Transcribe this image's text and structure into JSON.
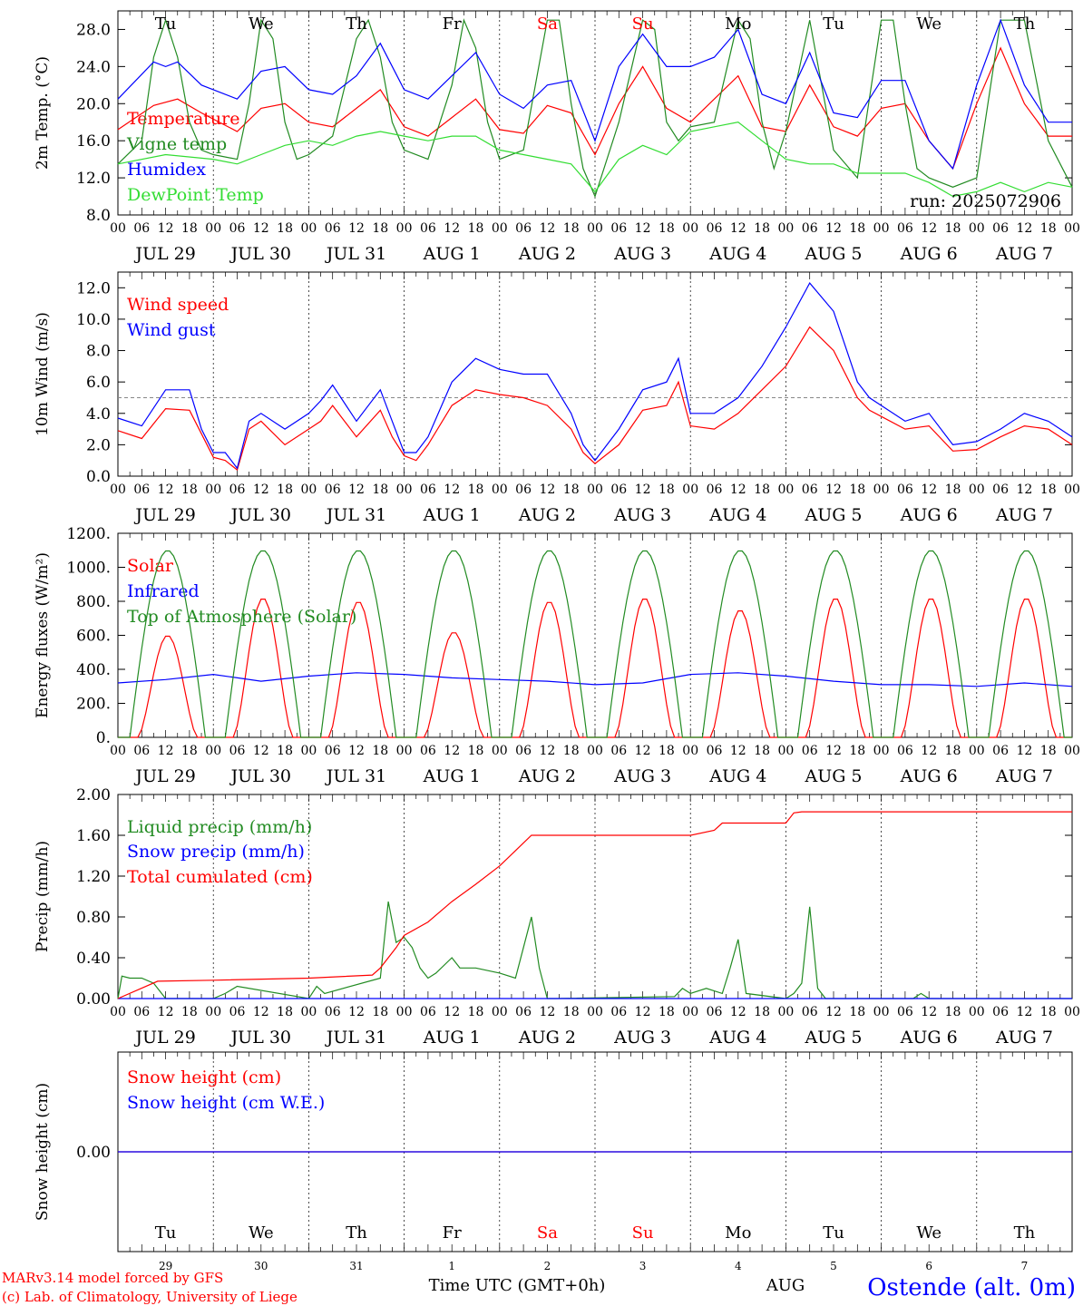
{
  "meta": {
    "run_label": "run: 2025072906",
    "footer_credit_1": "MARv3.14 model forced by GFS",
    "footer_credit_2": "(c) Lab. of Climatology, University of Liege",
    "time_axis_label": "Time UTC (GMT+0h)",
    "month_label": "AUG",
    "station": "Ostende (alt. 0m)"
  },
  "days": [
    {
      "date": "JUL 29",
      "dow": "Tu",
      "num": "29",
      "weekend": false
    },
    {
      "date": "JUL 30",
      "dow": "We",
      "num": "30",
      "weekend": false
    },
    {
      "date": "JUL 31",
      "dow": "Th",
      "num": "31",
      "weekend": false
    },
    {
      "date": "AUG  1",
      "dow": "Fr",
      "num": "1",
      "weekend": false
    },
    {
      "date": "AUG  2",
      "dow": "Sa",
      "num": "2",
      "weekend": true
    },
    {
      "date": "AUG  3",
      "dow": "Su",
      "num": "3",
      "weekend": true
    },
    {
      "date": "AUG  4",
      "dow": "Mo",
      "num": "4",
      "weekend": false
    },
    {
      "date": "AUG  5",
      "dow": "Tu",
      "num": "5",
      "weekend": false
    },
    {
      "date": "AUG  6",
      "dow": "We",
      "num": "6",
      "weekend": false
    },
    {
      "date": "AUG  7",
      "dow": "Th",
      "num": "7",
      "weekend": false
    }
  ],
  "hour_ticks": [
    "00",
    "06",
    "12",
    "18"
  ],
  "final_tick": "00",
  "colors": {
    "red": "#ff0000",
    "green": "#228b22",
    "blue": "#0000ff",
    "lightgreen": "#33dd33",
    "weekend": "#ff0000",
    "station": "#0000ff"
  },
  "chart_data": [
    {
      "type": "line",
      "ylabel": "2m Temp. (°C)",
      "ylim": [
        8,
        30
      ],
      "ytick_values": [
        8,
        12,
        16,
        20,
        24,
        28
      ],
      "ytick_labels": [
        "8.0",
        "12.0",
        "16.0",
        "20.0",
        "24.0",
        "28.0"
      ],
      "series": [
        {
          "name": "Temperature",
          "color": "#ff0000",
          "x": [
            0,
            9,
            15,
            21,
            30,
            36,
            42,
            48,
            54,
            60,
            66,
            72,
            78,
            84,
            90,
            96,
            102,
            108,
            114,
            120,
            126,
            132,
            138,
            144,
            150,
            156,
            162,
            168,
            174,
            180,
            186,
            192,
            198,
            204,
            210,
            216,
            222,
            228,
            234,
            240
          ],
          "y": [
            17.2,
            19.8,
            20.5,
            19.0,
            17.0,
            19.5,
            20.0,
            18.0,
            17.5,
            19.5,
            21.5,
            17.5,
            16.5,
            18.5,
            20.5,
            17.2,
            16.8,
            19.8,
            19.0,
            14.5,
            20.0,
            24.0,
            19.5,
            18.0,
            20.5,
            23.0,
            17.5,
            17.0,
            22.0,
            17.5,
            16.5,
            19.5,
            20.0,
            16.0,
            13.0,
            20.0,
            26.0,
            20.0,
            16.5,
            16.5
          ]
        },
        {
          "name": "Vigne temp",
          "color": "#228b22",
          "x": [
            0,
            6,
            9,
            12,
            15,
            18,
            21,
            24,
            30,
            33,
            36,
            39,
            42,
            45,
            48,
            54,
            60,
            63,
            66,
            69,
            72,
            78,
            84,
            87,
            90,
            93,
            96,
            102,
            108,
            111,
            114,
            117,
            120,
            126,
            132,
            135,
            138,
            141,
            144,
            150,
            156,
            159,
            162,
            165,
            168,
            174,
            180,
            186,
            192,
            195,
            198,
            201,
            204,
            210,
            216,
            222,
            228,
            234,
            240
          ],
          "y": [
            13.5,
            16.0,
            25.0,
            29.0,
            25.0,
            18.0,
            15.0,
            14.5,
            14.0,
            20.0,
            29.0,
            27.0,
            18.0,
            14.0,
            14.5,
            16.5,
            27.0,
            29.0,
            25.0,
            18.0,
            15.0,
            14.0,
            22.0,
            29.0,
            26.0,
            18.0,
            14.0,
            15.0,
            29.0,
            29.0,
            20.0,
            13.0,
            10.0,
            18.0,
            29.0,
            28.0,
            18.0,
            16.0,
            17.5,
            18.0,
            29.0,
            27.0,
            18.0,
            13.0,
            17.0,
            29.0,
            15.0,
            12.0,
            29.0,
            29.0,
            20.0,
            13.0,
            12.0,
            11.0,
            12.0,
            29.0,
            29.0,
            16.0,
            11.0
          ]
        },
        {
          "name": "Humidex",
          "color": "#0000ff",
          "x": [
            0,
            9,
            12,
            15,
            21,
            30,
            36,
            42,
            48,
            54,
            60,
            66,
            72,
            78,
            84,
            90,
            96,
            102,
            108,
            114,
            120,
            126,
            132,
            138,
            144,
            150,
            156,
            162,
            168,
            174,
            180,
            186,
            192,
            198,
            204,
            210,
            216,
            222,
            228,
            234,
            240
          ],
          "y": [
            20.5,
            24.5,
            24.0,
            24.5,
            22.0,
            20.5,
            23.5,
            24.0,
            21.5,
            21.0,
            23.0,
            26.5,
            21.5,
            20.5,
            23.0,
            25.5,
            21.0,
            19.5,
            22.0,
            22.5,
            16.0,
            24.0,
            27.5,
            24.0,
            24.0,
            25.0,
            28.0,
            21.0,
            20.0,
            25.5,
            19.0,
            18.5,
            22.5,
            22.5,
            16.0,
            13.0,
            22.0,
            29.0,
            22.0,
            18.0,
            18.0
          ]
        },
        {
          "name": "DewPoint Temp",
          "color": "#33dd33",
          "x": [
            0,
            12,
            24,
            30,
            36,
            42,
            48,
            54,
            60,
            66,
            72,
            78,
            84,
            90,
            96,
            102,
            108,
            114,
            120,
            126,
            132,
            138,
            144,
            150,
            156,
            162,
            168,
            174,
            180,
            186,
            192,
            198,
            204,
            210,
            216,
            222,
            228,
            234,
            240
          ],
          "y": [
            13.5,
            14.5,
            14.0,
            13.5,
            14.5,
            15.5,
            16.0,
            15.5,
            16.5,
            17.0,
            16.5,
            16.0,
            16.5,
            16.5,
            15.0,
            14.5,
            14.0,
            13.5,
            10.5,
            14.0,
            15.5,
            14.5,
            17.0,
            17.5,
            18.0,
            16.0,
            14.0,
            13.5,
            13.5,
            12.5,
            12.5,
            12.5,
            11.5,
            10.0,
            10.5,
            11.5,
            10.5,
            11.5,
            11.0
          ]
        }
      ]
    },
    {
      "type": "line",
      "ylabel": "10m Wind (m/s)",
      "ylim": [
        0,
        13
      ],
      "ytick_values": [
        0,
        2,
        4,
        6,
        8,
        10,
        12
      ],
      "ytick_labels": [
        "0.0",
        "2.0",
        "4.0",
        "6.0",
        "8.0",
        "10.0",
        "12.0"
      ],
      "ref_line": 5,
      "series": [
        {
          "name": "Wind speed",
          "color": "#ff0000",
          "x": [
            0,
            6,
            12,
            18,
            21,
            24,
            27,
            30,
            33,
            36,
            42,
            48,
            51,
            54,
            60,
            66,
            69,
            72,
            75,
            78,
            84,
            90,
            96,
            102,
            108,
            114,
            117,
            120,
            126,
            132,
            138,
            141,
            144,
            150,
            156,
            162,
            168,
            174,
            180,
            186,
            189,
            192,
            198,
            204,
            210,
            216,
            222,
            228,
            234,
            240
          ],
          "y": [
            2.9,
            2.4,
            4.3,
            4.2,
            2.7,
            1.2,
            1.0,
            0.4,
            3.0,
            3.5,
            2.0,
            3.0,
            3.5,
            4.5,
            2.5,
            4.2,
            2.5,
            1.3,
            1.0,
            2.0,
            4.5,
            5.5,
            5.2,
            5.0,
            4.5,
            3.0,
            1.5,
            0.8,
            2.0,
            4.2,
            4.5,
            6.0,
            3.2,
            3.0,
            4.0,
            5.5,
            7.0,
            9.5,
            8.0,
            5.0,
            4.2,
            3.8,
            3.0,
            3.2,
            1.6,
            1.7,
            2.5,
            3.2,
            3.0,
            2.0
          ]
        },
        {
          "name": "Wind gust",
          "color": "#0000ff",
          "x": [
            0,
            6,
            12,
            18,
            21,
            24,
            27,
            30,
            33,
            36,
            42,
            48,
            51,
            54,
            60,
            66,
            69,
            72,
            75,
            78,
            84,
            90,
            96,
            102,
            108,
            114,
            117,
            120,
            126,
            132,
            138,
            141,
            144,
            150,
            156,
            162,
            168,
            174,
            180,
            186,
            189,
            192,
            198,
            204,
            210,
            216,
            222,
            228,
            234,
            240
          ],
          "y": [
            3.7,
            3.2,
            5.5,
            5.5,
            3.0,
            1.5,
            1.5,
            0.5,
            3.5,
            4.0,
            3.0,
            4.0,
            4.8,
            5.8,
            3.5,
            5.5,
            3.5,
            1.5,
            1.5,
            2.5,
            6.0,
            7.5,
            6.8,
            6.5,
            6.5,
            4.0,
            2.0,
            1.0,
            3.0,
            5.5,
            6.0,
            7.5,
            4.0,
            4.0,
            5.0,
            7.0,
            9.5,
            12.3,
            10.5,
            6.0,
            5.0,
            4.5,
            3.5,
            4.0,
            2.0,
            2.2,
            3.0,
            4.0,
            3.5,
            2.5
          ]
        }
      ]
    },
    {
      "type": "line",
      "ylabel": "Energy fluxes (W/m²)",
      "ylim": [
        0,
        1200
      ],
      "ytick_values": [
        0,
        200,
        400,
        600,
        800,
        1000,
        1200
      ],
      "ytick_labels": [
        "0.",
        "200.",
        "400.",
        "600.",
        "800.",
        "1000.",
        "1200."
      ],
      "series": [
        {
          "name": "Solar",
          "color": "#ff0000",
          "peaks": [
            600,
            820,
            800,
            620,
            800,
            820,
            750,
            820,
            820,
            820
          ]
        },
        {
          "name": "Infrared",
          "color": "#0000ff",
          "x": [
            0,
            12,
            24,
            36,
            48,
            60,
            72,
            84,
            96,
            108,
            120,
            132,
            144,
            156,
            168,
            180,
            192,
            204,
            216,
            228,
            240
          ],
          "y": [
            320,
            340,
            370,
            330,
            360,
            380,
            370,
            350,
            340,
            330,
            310,
            320,
            370,
            380,
            360,
            330,
            310,
            310,
            300,
            320,
            300
          ]
        },
        {
          "name": "Top of Atmosphere (Solar)",
          "color": "#228b22",
          "peak": 1100
        }
      ]
    },
    {
      "type": "line",
      "ylabel": "Precip (mm/h)",
      "ylim": [
        0,
        2
      ],
      "ytick_values": [
        0,
        0.4,
        0.8,
        1.2,
        1.6,
        2.0
      ],
      "ytick_labels": [
        "0.00",
        "0.40",
        "0.80",
        "1.20",
        "1.60",
        "2.00"
      ],
      "series": [
        {
          "name": "Liquid precip (mm/h)",
          "color": "#228b22",
          "x": [
            0,
            1,
            3,
            6,
            9,
            12,
            24,
            27,
            30,
            48,
            50,
            52,
            66,
            68,
            70,
            72,
            74,
            76,
            78,
            80,
            84,
            86,
            90,
            96,
            100,
            102,
            104,
            106,
            108,
            110,
            140,
            142,
            144,
            148,
            152,
            154,
            156,
            158,
            168,
            170,
            172,
            174,
            176,
            178,
            200,
            202,
            204,
            240
          ],
          "y": [
            0,
            0.22,
            0.2,
            0.2,
            0.15,
            0,
            0,
            0.05,
            0.12,
            0,
            0.12,
            0.05,
            0.2,
            0.95,
            0.55,
            0.6,
            0.5,
            0.3,
            0.2,
            0.25,
            0.4,
            0.3,
            0.3,
            0.25,
            0.2,
            0.5,
            0.8,
            0.3,
            0,
            0,
            0.02,
            0.1,
            0.05,
            0.1,
            0.05,
            0.3,
            0.58,
            0.05,
            0,
            0.05,
            0.15,
            0.9,
            0.1,
            0,
            0,
            0.05,
            0,
            0
          ]
        },
        {
          "name": "Snow precip (mm/h)",
          "color": "#0000ff",
          "x": [
            0,
            240
          ],
          "y": [
            0,
            0
          ]
        },
        {
          "name": "Total cumulated (cm)",
          "color": "#ff0000",
          "x": [
            0,
            10,
            24,
            48,
            64,
            66,
            70,
            72,
            78,
            84,
            90,
            96,
            100,
            104,
            108,
            144,
            150,
            152,
            168,
            170,
            172,
            240
          ],
          "y": [
            0,
            0.17,
            0.18,
            0.2,
            0.23,
            0.3,
            0.5,
            0.62,
            0.75,
            0.95,
            1.12,
            1.3,
            1.45,
            1.6,
            1.6,
            1.6,
            1.65,
            1.72,
            1.72,
            1.82,
            1.83,
            1.83
          ]
        }
      ]
    },
    {
      "type": "line",
      "ylabel": "Snow height (cm)",
      "ylim": [
        -2,
        2
      ],
      "ytick_values": [
        0
      ],
      "ytick_labels": [
        "0.00"
      ],
      "series": [
        {
          "name": "Snow height (cm)",
          "color": "#ff0000",
          "x": [
            0,
            240
          ],
          "y": [
            0,
            0
          ]
        },
        {
          "name": "Snow height (cm W.E.)",
          "color": "#0000ff",
          "x": [
            0,
            240
          ],
          "y": [
            0,
            0
          ]
        }
      ]
    }
  ]
}
